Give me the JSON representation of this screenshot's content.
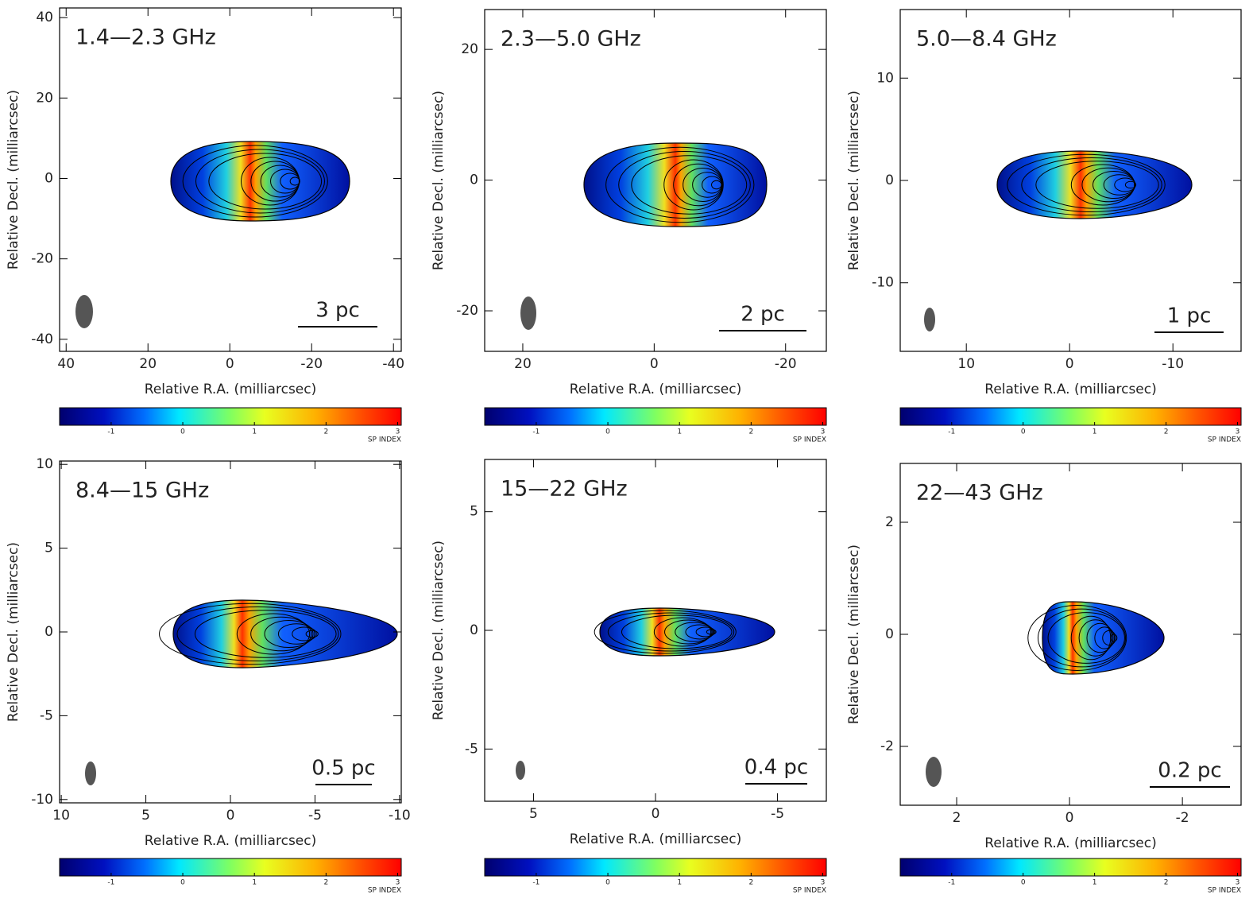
{
  "chart_data": [
    {
      "type": "spectral-index-map",
      "title": "1.4—2.3 GHz",
      "xlabel": "Relative R.A. (milliarcsec)",
      "ylabel": "Relative Decl. (milliarcsec)",
      "xlim": [
        41.6,
        -41.9
      ],
      "ylim": [
        -43,
        42.4
      ],
      "xticks": [
        40,
        20,
        0,
        -20,
        -40
      ],
      "yticks": [
        40,
        20,
        0,
        -20,
        -40
      ],
      "scale_bar": "3 pc",
      "colorbar": {
        "label": "SP INDEX",
        "lim": [
          -1.72,
          3.05
        ],
        "ticks": [
          -1,
          0,
          1,
          2,
          3
        ]
      }
    },
    {
      "type": "spectral-index-map",
      "title": "2.3—5.0 GHz",
      "xlabel": "Relative R.A. (milliarcsec)",
      "ylabel": "Relative Decl. (milliarcsec)",
      "xlim": [
        25.8,
        -26.2
      ],
      "ylim": [
        -26.2,
        26.1
      ],
      "xticks": [
        20,
        0,
        -20
      ],
      "yticks": [
        20,
        0,
        -20
      ],
      "scale_bar": "2 pc",
      "colorbar": {
        "label": "SP INDEX",
        "lim": [
          -1.72,
          3.05
        ],
        "ticks": [
          -1,
          0,
          1,
          2,
          3
        ]
      }
    },
    {
      "type": "spectral-index-map",
      "title": "5.0—8.4 GHz",
      "xlabel": "Relative R.A. (milliarcsec)",
      "ylabel": "Relative Decl. (milliarcsec)",
      "xlim": [
        16.4,
        -16.6
      ],
      "ylim": [
        -16.7,
        16.7
      ],
      "xticks": [
        10,
        0,
        -10
      ],
      "yticks": [
        10,
        0,
        -10
      ],
      "scale_bar": "1 pc",
      "colorbar": {
        "label": "SP INDEX",
        "lim": [
          -1.72,
          3.05
        ],
        "ticks": [
          -1,
          0,
          1,
          2,
          3
        ]
      }
    },
    {
      "type": "spectral-index-map",
      "title": "8.4—15 GHz",
      "xlabel": "Relative R.A. (milliarcsec)",
      "ylabel": "Relative Decl. (milliarcsec)",
      "xlim": [
        10.1,
        -10.1
      ],
      "ylim": [
        -10.2,
        10.2
      ],
      "xticks": [
        10,
        5,
        0,
        -5,
        -10
      ],
      "yticks": [
        10,
        5,
        0,
        -5,
        -10
      ],
      "scale_bar": "0.5 pc",
      "colorbar": {
        "label": "SP INDEX",
        "lim": [
          -1.72,
          3.05
        ],
        "ticks": [
          -1,
          0,
          1,
          2,
          3
        ]
      }
    },
    {
      "type": "spectral-index-map",
      "title": "15—22 GHz",
      "xlabel": "Relative R.A. (milliarcsec)",
      "ylabel": "Relative Decl. (milliarcsec)",
      "xlim": [
        7.0,
        -7.0
      ],
      "ylim": [
        -7.2,
        7.2
      ],
      "xticks": [
        5,
        0,
        -5
      ],
      "yticks": [
        5,
        0,
        -5
      ],
      "scale_bar": "0.4 pc",
      "colorbar": {
        "label": "SP INDEX",
        "lim": [
          -1.72,
          3.05
        ],
        "ticks": [
          -1,
          0,
          1,
          2,
          3
        ]
      }
    },
    {
      "type": "spectral-index-map",
      "title": "22—43 GHz",
      "xlabel": "Relative R.A. (milliarcsec)",
      "ylabel": "Relative Decl. (milliarcsec)",
      "xlim": [
        3.0,
        -3.04
      ],
      "ylim": [
        -3.05,
        3.05
      ],
      "xticks": [
        2,
        0,
        -2
      ],
      "yticks": [
        2,
        0,
        -2
      ],
      "scale_bar": "0.2 pc",
      "colorbar": {
        "label": "SP INDEX",
        "lim": [
          -1.72,
          3.05
        ],
        "ticks": [
          -1,
          0,
          1,
          2,
          3
        ]
      }
    }
  ]
}
